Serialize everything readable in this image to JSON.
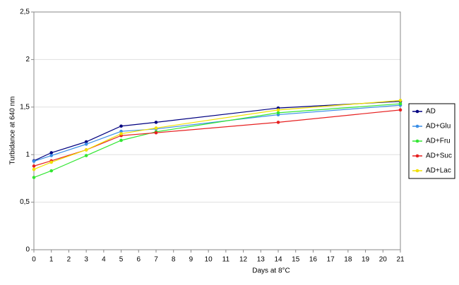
{
  "chart_data": {
    "type": "line",
    "x_label": "Days at 8°C",
    "y_label": "Turbidance at 640 nm",
    "x": [
      0,
      1,
      3,
      5,
      7,
      14,
      21
    ],
    "xlim": [
      0,
      21
    ],
    "xticks": [
      0,
      1,
      2,
      3,
      4,
      5,
      6,
      7,
      8,
      9,
      10,
      11,
      12,
      13,
      14,
      15,
      16,
      17,
      18,
      19,
      20,
      21
    ],
    "ylim": [
      0,
      2.5
    ],
    "yticks": [
      0,
      {
        "value": 0.5,
        "label": "0,5"
      },
      1,
      {
        "value": 1.5,
        "label": "1,5"
      },
      2,
      {
        "value": 2.5,
        "label": "2,5"
      }
    ],
    "grid": true,
    "legend": "right",
    "series": [
      {
        "name": "AD",
        "color": "#000080",
        "values": [
          0.935,
          1.02,
          1.135,
          1.3,
          1.34,
          1.49,
          1.56
        ]
      },
      {
        "name": "AD+Glu",
        "color": "#3a8ee6",
        "values": [
          0.93,
          0.99,
          1.11,
          1.245,
          1.27,
          1.42,
          1.52
        ]
      },
      {
        "name": "AD+Fru",
        "color": "#33e633",
        "values": [
          0.76,
          0.83,
          0.99,
          1.15,
          1.24,
          1.44,
          1.535
        ]
      },
      {
        "name": "AD+Suc",
        "color": "#e62020",
        "values": [
          0.88,
          0.935,
          1.05,
          1.2,
          1.23,
          1.34,
          1.47
        ]
      },
      {
        "name": "AD+Lac",
        "color": "#f0e000",
        "values": [
          0.845,
          0.92,
          1.05,
          1.22,
          1.28,
          1.47,
          1.57
        ]
      }
    ]
  }
}
